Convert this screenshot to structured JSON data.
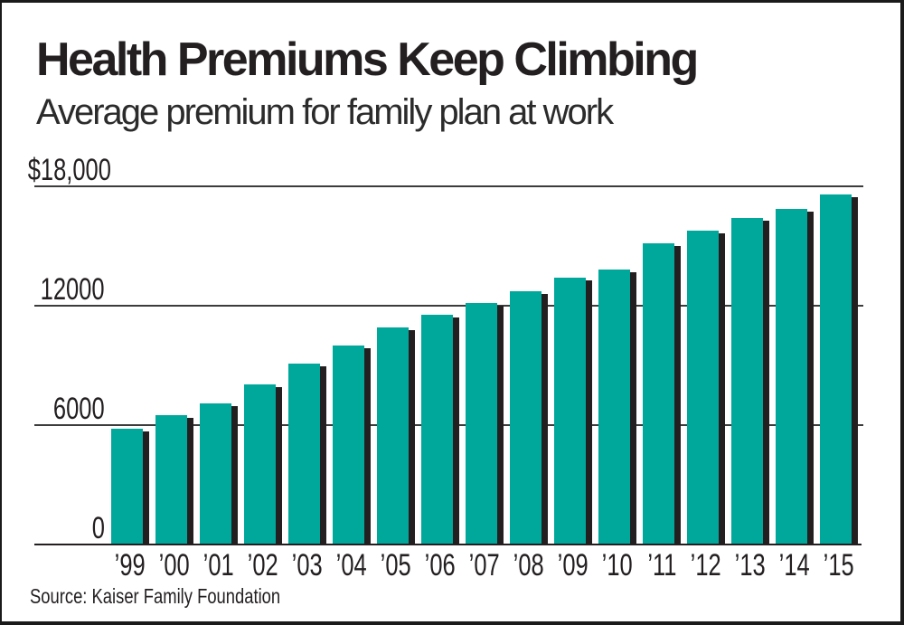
{
  "header": {
    "title": "Health Premiums Keep Climbing",
    "subtitle": "Average premium for family plan at work"
  },
  "source": "Source: Kaiser Family Foundation",
  "colors": {
    "bar": "#00a79b",
    "bar_shadow": "#231f20",
    "gridline": "#3c3c3c",
    "baseline": "#231f20",
    "ink": "#231f20",
    "frame_border": "#1a1a1a",
    "background": "#ffffff"
  },
  "chart_data": {
    "type": "bar",
    "title": "Health Premiums Keep Climbing",
    "subtitle": "Average premium for family plan at work",
    "categories": [
      "’99",
      "’00",
      "’01",
      "’02",
      "’03",
      "’04",
      "’05",
      "’06",
      "’07",
      "’08",
      "’09",
      "’10",
      "’11",
      "’12",
      "’13",
      "’14",
      "’15"
    ],
    "values": [
      5791,
      6438,
      7061,
      8003,
      9068,
      9950,
      10880,
      11480,
      12106,
      12680,
      13375,
      13770,
      15073,
      15745,
      16351,
      16834,
      17545
    ],
    "xlabel": "",
    "ylabel": "",
    "ylim": [
      0,
      18000
    ],
    "ytick_values": [
      0,
      6000,
      12000,
      18000
    ],
    "ytick_labels": [
      "0",
      "6000",
      "12000",
      "$18,000"
    ],
    "grid": "horizontal gridlines at 6000, 12000, 18000",
    "legend": "none",
    "bar_color": "#00a79b",
    "bar_shadow_color": "#231f20",
    "source": "Source: Kaiser Family Foundation"
  }
}
